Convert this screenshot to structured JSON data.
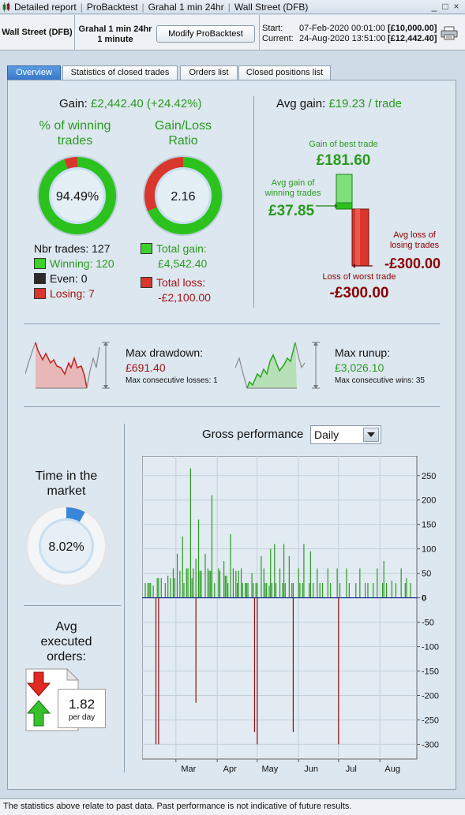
{
  "titlebar": {
    "items": [
      "Detailed report",
      "ProBacktest",
      "Grahal 1 min 24hr",
      "Wall Street (DFB)"
    ],
    "controls": [
      "_",
      "□",
      "×"
    ]
  },
  "header": {
    "instrument": "Wall Street (DFB)",
    "system_line1": "Grahal 1 min 24hr",
    "system_line2": "1 minute",
    "modify_button": "Modify ProBacktest",
    "start_label": "Start:",
    "start_date": "07-Feb-2020 00:01:00",
    "start_capital": "[£10,000.00]",
    "current_label": "Current:",
    "current_date": "24-Aug-2020 13:51:00",
    "current_capital": "[£12,442.40]"
  },
  "tabs": [
    "Overview",
    "Statistics of closed trades",
    "Orders list",
    "Closed positions list"
  ],
  "overview": {
    "gain_label": "Gain:",
    "gain_value": "£2,442.40 (+24.42%)",
    "winning_title_1": "% of winning",
    "winning_title_2": "trades",
    "winning_pct": "94.49%",
    "winning_fraction": 0.9449,
    "ratio_title_1": "Gain/Loss",
    "ratio_title_2": "Ratio",
    "ratio_value": "2.16",
    "ratio_gain_fraction": 0.684,
    "nbr_trades": "Nbr trades: 127",
    "winning": "Winning: 120",
    "even": "Even: 0",
    "losing": "Losing: 7",
    "total_gain_label": "Total gain:",
    "total_gain": "£4,542.40",
    "total_loss_label": "Total loss:",
    "total_loss": "-£2,100.00",
    "avg_gain_label": "Avg gain:",
    "avg_gain_value": "£19.23 / trade",
    "best_trade_label": "Gain of best trade",
    "best_trade": "£181.60",
    "avg_win_label_1": "Avg gain of",
    "avg_win_label_2": "winning trades",
    "avg_win": "£37.85",
    "avg_loss_label_1": "Avg loss of",
    "avg_loss_label_2": "losing trades",
    "avg_loss": "-£300.00",
    "worst_trade_label": "Loss of worst trade",
    "worst_trade": "-£300.00",
    "max_drawdown_label": "Max drawdown:",
    "max_drawdown": "£691.40",
    "max_consec_losses": "Max consecutive losses: 1",
    "max_runup_label": "Max runup:",
    "max_runup": "£3,026.10",
    "max_consec_wins": "Max consecutive wins: 35",
    "time_market_1": "Time in the",
    "time_market_2": "market",
    "time_market_pct": "8.02%",
    "time_market_fraction": 0.0802,
    "avg_orders_1": "Avg",
    "avg_orders_2": "executed",
    "avg_orders_3": "orders:",
    "avg_orders_value": "1.82",
    "avg_orders_unit": "per day"
  },
  "performance": {
    "title": "Gross performance",
    "period_select": "Daily"
  },
  "chart_data": {
    "type": "bar",
    "ylim": [
      -330,
      290
    ],
    "yticks": [
      250,
      200,
      150,
      100,
      50,
      0,
      -50,
      -100,
      -150,
      -200,
      -250,
      -300
    ],
    "x_range": [
      "2020-02-07",
      "2020-08-24"
    ],
    "xtick_labels": [
      "Mar",
      "Apr",
      "May",
      "Jun",
      "Jul",
      "Aug"
    ],
    "xticks": [
      "2020-03-01",
      "2020-04-01",
      "2020-05-01",
      "2020-06-01",
      "2020-07-01",
      "2020-08-01"
    ],
    "series": [
      {
        "x": [
          "2020-02-07",
          "2020-02-09",
          "2020-02-10",
          "2020-02-11",
          "2020-02-13",
          "2020-02-16",
          "2020-02-17",
          "2020-02-19",
          "2020-02-22",
          "2020-02-24",
          "2020-02-26",
          "2020-02-28",
          "2020-02-29",
          "2020-03-02",
          "2020-03-04",
          "2020-03-06",
          "2020-03-07",
          "2020-03-09",
          "2020-03-10",
          "2020-03-12",
          "2020-03-13",
          "2020-03-14",
          "2020-03-16",
          "2020-03-18",
          "2020-03-19",
          "2020-03-20",
          "2020-03-23",
          "2020-03-25",
          "2020-03-26",
          "2020-03-27",
          "2020-03-28",
          "2020-03-30",
          "2020-04-02",
          "2020-04-03",
          "2020-04-06",
          "2020-04-07",
          "2020-04-08",
          "2020-04-09",
          "2020-04-11",
          "2020-04-13",
          "2020-04-15",
          "2020-04-16",
          "2020-04-17",
          "2020-04-19",
          "2020-04-20",
          "2020-04-22",
          "2020-04-23",
          "2020-04-24",
          "2020-04-27",
          "2020-04-28",
          "2020-04-30",
          "2020-05-01",
          "2020-05-04",
          "2020-05-06",
          "2020-05-07",
          "2020-05-08",
          "2020-05-10",
          "2020-05-11",
          "2020-05-12",
          "2020-05-14",
          "2020-05-15",
          "2020-05-18",
          "2020-05-20",
          "2020-05-21",
          "2020-05-22",
          "2020-05-25",
          "2020-05-27",
          "2020-05-28",
          "2020-06-01",
          "2020-06-02",
          "2020-06-04",
          "2020-06-05",
          "2020-06-09",
          "2020-06-10",
          "2020-06-12",
          "2020-06-15",
          "2020-06-17",
          "2020-06-19",
          "2020-06-23",
          "2020-06-25",
          "2020-06-30",
          "2020-07-02",
          "2020-07-07",
          "2020-07-09",
          "2020-07-14",
          "2020-07-17",
          "2020-07-21",
          "2020-07-23",
          "2020-07-27",
          "2020-07-30",
          "2020-08-03",
          "2020-08-04",
          "2020-08-06",
          "2020-08-10",
          "2020-08-13",
          "2020-08-17",
          "2020-08-20",
          "2020-08-21",
          "2020-08-24"
        ],
        "values": [
          30,
          30,
          30,
          30,
          25,
          40,
          40,
          40,
          30,
          45,
          40,
          60,
          40,
          90,
          55,
          125,
          30,
          60,
          60,
          265,
          40,
          60,
          80,
          160,
          55,
          55,
          90,
          60,
          55,
          55,
          210,
          30,
          60,
          55,
          75,
          45,
          45,
          30,
          130,
          60,
          55,
          30,
          55,
          60,
          30,
          30,
          30,
          30,
          50,
          30,
          30,
          30,
          85,
          60,
          30,
          30,
          25,
          100,
          30,
          110,
          30,
          60,
          30,
          110,
          30,
          85,
          30,
          30,
          60,
          30,
          30,
          110,
          30,
          95,
          30,
          60,
          30,
          30,
          60,
          30,
          60,
          30,
          60,
          30,
          30,
          60,
          30,
          30,
          30,
          60,
          30,
          75,
          30,
          35,
          30,
          60,
          30,
          40,
          30
        ],
        "color": "#2a9a20"
      },
      {
        "x": [
          "2020-02-15",
          "2020-02-17",
          "2020-03-16",
          "2020-04-29",
          "2020-05-01",
          "2020-05-28",
          "2020-07-01"
        ],
        "values": [
          -300,
          -300,
          -215,
          -275,
          -300,
          -275,
          -300
        ],
        "color": "#8b1010"
      }
    ]
  }
}
